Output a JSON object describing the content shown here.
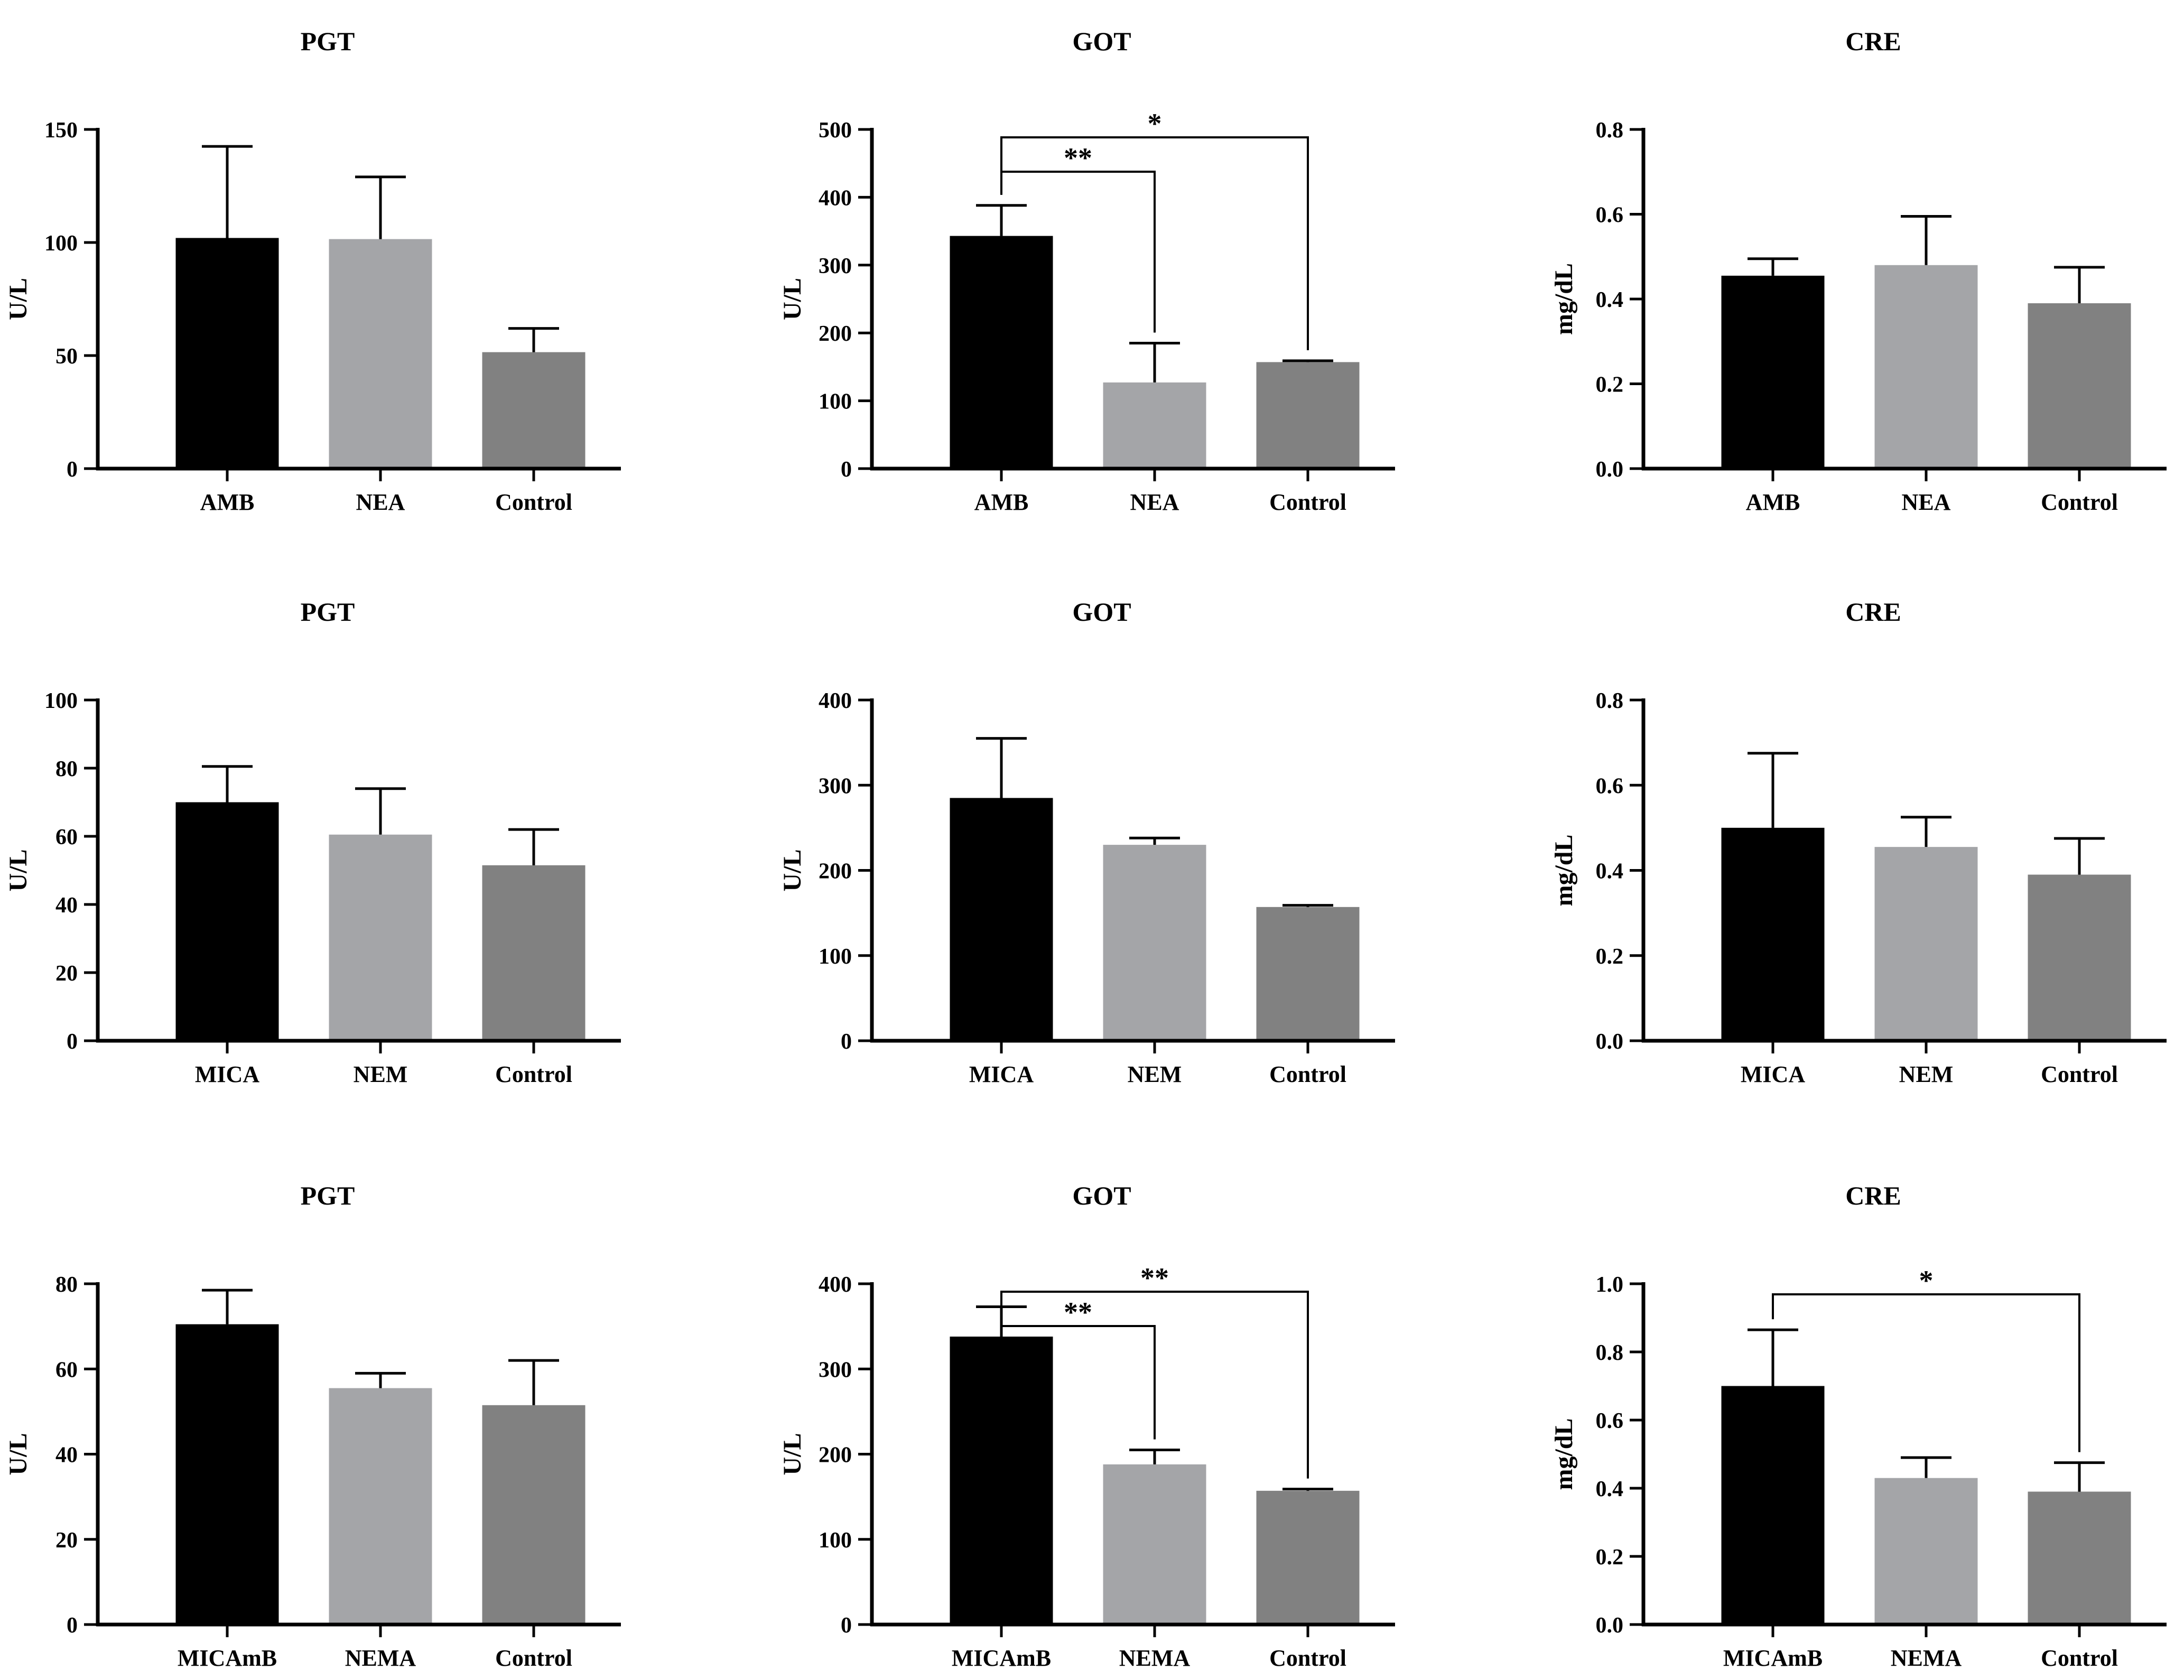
{
  "colors": {
    "treatment": "#000000",
    "nanoparticle": "#a4a5a8",
    "control": "#818181",
    "axis": "#000000"
  },
  "chart_data": [
    {
      "type": "bar",
      "title": "PGT",
      "ylabel": "U/L",
      "ylim": [
        0,
        150
      ],
      "yticks": [
        "0",
        "50",
        "100",
        "150"
      ],
      "categories": [
        "AMB",
        "NEA",
        "Control"
      ],
      "values": [
        102,
        101.5,
        51.5
      ],
      "errors": [
        40.5,
        27.5,
        10.5
      ],
      "significance": []
    },
    {
      "type": "bar",
      "title": "GOT",
      "ylabel": "U/L",
      "ylim": [
        0,
        500
      ],
      "yticks": [
        "0",
        "100",
        "200",
        "300",
        "400",
        "500"
      ],
      "categories": [
        "AMB",
        "NEA",
        "Control"
      ],
      "values": [
        343,
        127,
        157
      ],
      "errors": [
        45,
        58,
        2
      ],
      "significance": [
        {
          "from": 0,
          "to": 1,
          "label": "**",
          "level": 1
        },
        {
          "from": 0,
          "to": 2,
          "label": "*",
          "level": 2
        }
      ]
    },
    {
      "type": "bar",
      "title": "CRE",
      "ylabel": "mg/dL",
      "ylim": [
        0,
        0.8
      ],
      "yticks": [
        "0.0",
        "0.2",
        "0.4",
        "0.6",
        "0.8"
      ],
      "categories": [
        "AMB",
        "NEA",
        "Control"
      ],
      "values": [
        0.455,
        0.48,
        0.39
      ],
      "errors": [
        0.04,
        0.115,
        0.085
      ],
      "significance": []
    },
    {
      "type": "bar",
      "title": "PGT",
      "ylabel": "U/L",
      "ylim": [
        0,
        100
      ],
      "yticks": [
        "0",
        "20",
        "40",
        "60",
        "80",
        "100"
      ],
      "categories": [
        "MICA",
        "NEM",
        "Control"
      ],
      "values": [
        70,
        60.5,
        51.5
      ],
      "errors": [
        10.5,
        13.5,
        10.5
      ],
      "significance": []
    },
    {
      "type": "bar",
      "title": "GOT",
      "ylabel": "U/L",
      "ylim": [
        0,
        400
      ],
      "yticks": [
        "0",
        "100",
        "200",
        "300",
        "400"
      ],
      "categories": [
        "MICA",
        "NEM",
        "Control"
      ],
      "values": [
        285,
        230,
        157
      ],
      "errors": [
        70,
        8,
        2
      ],
      "significance": []
    },
    {
      "type": "bar",
      "title": "CRE",
      "ylabel": "mg/dL",
      "ylim": [
        0,
        0.8
      ],
      "yticks": [
        "0.0",
        "0.2",
        "0.4",
        "0.6",
        "0.8"
      ],
      "categories": [
        "MICA",
        "NEM",
        "Control"
      ],
      "values": [
        0.5,
        0.455,
        0.39
      ],
      "errors": [
        0.175,
        0.07,
        0.085
      ],
      "significance": []
    },
    {
      "type": "bar",
      "title": "PGT",
      "ylabel": "U/L",
      "ylim": [
        0,
        80
      ],
      "yticks": [
        "0",
        "20",
        "40",
        "60",
        "80"
      ],
      "categories": [
        "MICAmB",
        "NEMA",
        "Control"
      ],
      "values": [
        70.5,
        55.5,
        51.5
      ],
      "errors": [
        8,
        3.5,
        10.5
      ],
      "significance": []
    },
    {
      "type": "bar",
      "title": "GOT",
      "ylabel": "U/L",
      "ylim": [
        0,
        400
      ],
      "yticks": [
        "0",
        "100",
        "200",
        "300",
        "400"
      ],
      "categories": [
        "MICAmB",
        "NEMA",
        "Control"
      ],
      "values": [
        338,
        188,
        157
      ],
      "errors": [
        35,
        17,
        2
      ],
      "significance": [
        {
          "from": 0,
          "to": 1,
          "label": "**",
          "level": 1
        },
        {
          "from": 0,
          "to": 2,
          "label": "**",
          "level": 2
        }
      ]
    },
    {
      "type": "bar",
      "title": "CRE",
      "ylabel": "mg/dL",
      "ylim": [
        0,
        1.0
      ],
      "yticks": [
        "0.0",
        "0.2",
        "0.4",
        "0.6",
        "0.8",
        "1.0"
      ],
      "categories": [
        "MICAmB",
        "NEMA",
        "Control"
      ],
      "values": [
        0.7,
        0.43,
        0.39
      ],
      "errors": [
        0.165,
        0.06,
        0.085
      ],
      "significance": [
        {
          "from": 0,
          "to": 2,
          "label": "*",
          "level": 1
        }
      ]
    }
  ]
}
